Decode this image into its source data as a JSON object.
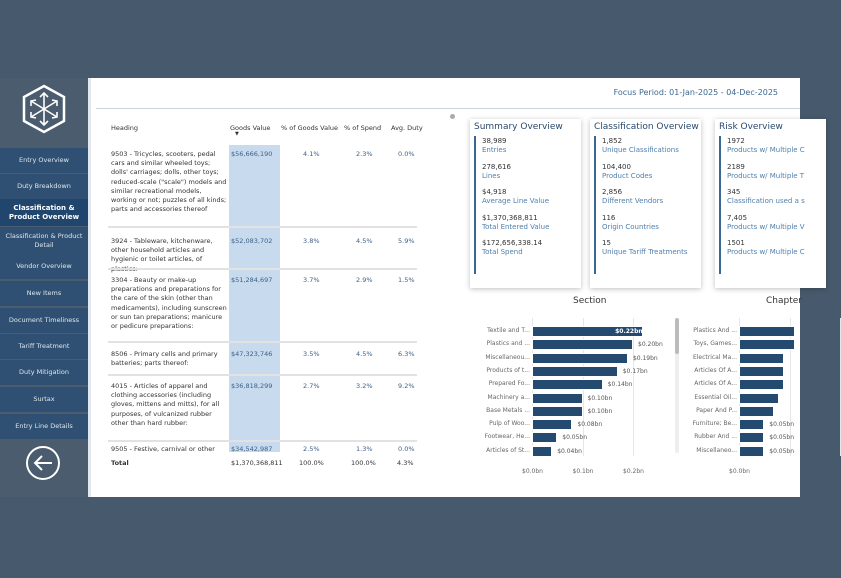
{
  "sidebar": {
    "items": [
      {
        "label": "Entry Overview"
      },
      {
        "label": "Duty Breakdown"
      },
      {
        "label": "Classification & Product Overview",
        "active": true
      },
      {
        "label": "Classification & Product Detail"
      },
      {
        "label": "Vendor Overview"
      },
      {
        "label": "New Items"
      },
      {
        "label": "Document Timeliness"
      },
      {
        "label": "Tariff Treatment"
      },
      {
        "label": "Duty Mitigation"
      },
      {
        "label": "Surtax"
      },
      {
        "label": "Entry Line Details"
      }
    ],
    "back_icon": "arrow-left-circle-icon",
    "logo_icon": "hexagon-cube-arrows-logo"
  },
  "header": {
    "focus_period": "Focus Period: 01-Jan-2025 - 04-Dec-2025"
  },
  "table": {
    "columns": [
      "Heading",
      "Goods Value",
      "% of Goods Value",
      "% of Spend",
      "Avg. Duty"
    ],
    "sort_indicator": "▼",
    "rows": [
      {
        "heading": "9503 - Tricycles, scooters, pedal cars and similar wheeled toys; dolls' carriages; dolls, other toys; reduced-scale (\"scale\") models and similar recreational models, working or not; puzzles of all kinds; parts and accessories thereof",
        "goods_value": "$56,666,190",
        "pct_goods": "4.1%",
        "pct_spend": "2.3%",
        "avg_duty": "0.0%"
      },
      {
        "heading": "3924 - Tableware, kitchenware, other household articles and hygienic or toilet articles, of plastics:",
        "goods_value": "$52,083,702",
        "pct_goods": "3.8%",
        "pct_spend": "4.5%",
        "avg_duty": "5.9%"
      },
      {
        "heading": "3304 - Beauty or make-up preparations and preparations for the care of the skin (other than medicaments), including sunscreen or sun tan preparations; manicure or pedicure preparations:",
        "goods_value": "$51,284,697",
        "pct_goods": "3.7%",
        "pct_spend": "2.9%",
        "avg_duty": "1.5%"
      },
      {
        "heading": "8506 - Primary cells and primary batteries; parts thereof:",
        "goods_value": "$47,323,746",
        "pct_goods": "3.5%",
        "pct_spend": "4.5%",
        "avg_duty": "6.3%"
      },
      {
        "heading": "4015 - Articles of apparel and clothing accessories (including gloves, mittens and mitts), for all purposes, of vulcanized rubber other than hard rubber:",
        "goods_value": "$36,818,299",
        "pct_goods": "2.7%",
        "pct_spend": "3.2%",
        "avg_duty": "9.2%"
      },
      {
        "heading": "9505 - Festive, carnival or other",
        "goods_value": "$34,542,987",
        "pct_goods": "2.5%",
        "pct_spend": "1.3%",
        "avg_duty": "0.0%"
      }
    ],
    "total": {
      "label": "Total",
      "goods_value": "$1,370,368,811",
      "pct_goods": "100.0%",
      "pct_spend": "100.0%",
      "avg_duty": "4.3%"
    }
  },
  "cards": [
    {
      "title": "Summary Overview",
      "items": [
        {
          "value": "38,989",
          "label": "Entries"
        },
        {
          "value": "278,616",
          "label": "Lines"
        },
        {
          "value": "$4,918",
          "label": "Average Line Value"
        },
        {
          "value": "$1,370,368,811",
          "label": "Total Entered Value"
        },
        {
          "value": "$172,656,338.14",
          "label": "Total Spend"
        }
      ]
    },
    {
      "title": "Classification Overview",
      "items": [
        {
          "value": "1,852",
          "label": "Unique Classifications"
        },
        {
          "value": "104,400",
          "label": "Product Codes"
        },
        {
          "value": "2,856",
          "label": "Different Vendors"
        },
        {
          "value": "116",
          "label": "Origin Countries"
        },
        {
          "value": "15",
          "label": "Unique Tariff Treatments"
        }
      ]
    },
    {
      "title": "Risk Overview",
      "items": [
        {
          "value": "1972",
          "label": "Products w/ Multiple C"
        },
        {
          "value": "2189",
          "label": "Products w/ Multiple T"
        },
        {
          "value": "345",
          "label": "Classification used a s"
        },
        {
          "value": "7,405",
          "label": "Products w/ Multiple V"
        },
        {
          "value": "1501",
          "label": "Products w/ Multiple C"
        }
      ]
    }
  ],
  "chart_data": [
    {
      "type": "bar",
      "orientation": "horizontal",
      "title": "Section",
      "categories": [
        "Textile and T...",
        "Plastics and ...",
        "Miscellaneou...",
        "Products of t...",
        "Prepared Fo...",
        "Machinery a...",
        "Base Metals ...",
        "Pulp of Woo...",
        "Footwear, He...",
        "Articles of St..."
      ],
      "values": [
        0.22,
        0.2,
        0.19,
        0.17,
        0.14,
        0.1,
        0.1,
        0.08,
        0.05,
        0.04
      ],
      "labels": [
        "$0.22bn",
        "$0.20bn",
        "$0.19bn",
        "$0.17bn",
        "$0.14bn",
        "$0.10bn",
        "$0.10bn",
        "$0.08bn",
        "$0.05bn",
        "$0.04bn"
      ],
      "xticks": [
        "$0.0bn",
        "$0.1bn",
        "$0.2bn"
      ],
      "xlim": [
        0,
        0.24
      ],
      "color": "#244a70",
      "grid": true
    },
    {
      "type": "bar",
      "orientation": "horizontal",
      "title": "Chapter",
      "categories": [
        "Plastics And ...",
        "Toys, Games...",
        "Electrical Ma...",
        "Articles Of A...",
        "Articles Of A...",
        "Essential Oil...",
        "Paper And P...",
        "Furniture; Be...",
        "Rubber And ...",
        "Miscellaneo..."
      ],
      "values": [
        0.11,
        0.11,
        0.09,
        0.09,
        0.09,
        0.08,
        0.07,
        0.05,
        0.05,
        0.05
      ],
      "labels": [
        "",
        "",
        "",
        "",
        "",
        "",
        "",
        "$0.05bn",
        "$0.05bn",
        "$0.05bn"
      ],
      "xticks": [
        "$0.0bn"
      ],
      "xlim": [
        0,
        0.24
      ],
      "color": "#244a70",
      "grid": true
    }
  ]
}
